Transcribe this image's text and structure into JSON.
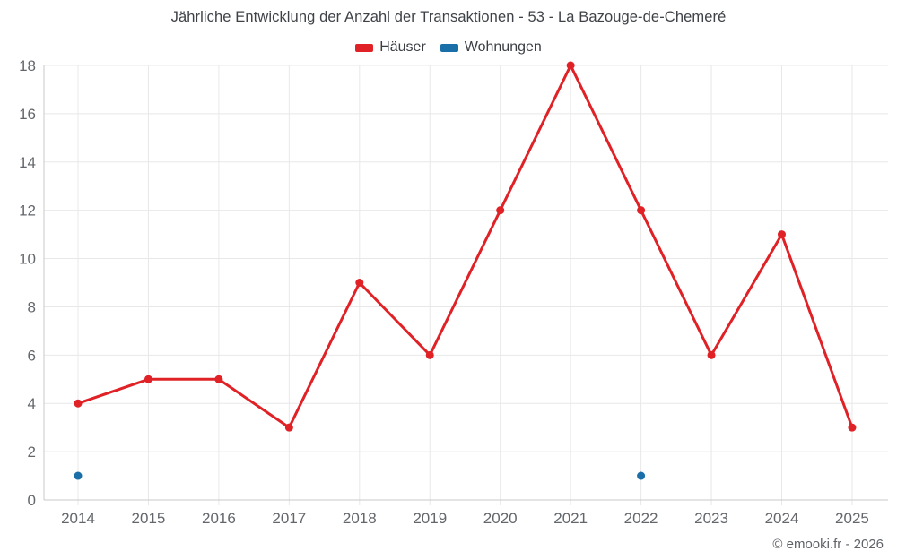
{
  "page": {
    "title": "Jährliche Entwicklung der Anzahl der Transaktionen - 53 - La Bazouge-de-Chemeré",
    "footer": "© emooki.fr - 2026"
  },
  "legend": {
    "items": [
      {
        "label": "Häuser",
        "color": "#e02227"
      },
      {
        "label": "Wohnungen",
        "color": "#1a6fa8"
      }
    ]
  },
  "chart_data": {
    "type": "line",
    "title": "Jährliche Entwicklung der Anzahl der Transaktionen - 53 - La Bazouge-de-Chemeré",
    "categories": [
      "2014",
      "2015",
      "2016",
      "2017",
      "2018",
      "2019",
      "2020",
      "2021",
      "2022",
      "2023",
      "2024",
      "2025"
    ],
    "series": [
      {
        "name": "Häuser",
        "type": "line",
        "color": "#e02227",
        "values": [
          4,
          5,
          5,
          3,
          9,
          6,
          12,
          18,
          12,
          6,
          11,
          3
        ]
      },
      {
        "name": "Wohnungen",
        "type": "scatter",
        "color": "#1a6fa8",
        "values": [
          1,
          null,
          null,
          null,
          null,
          null,
          null,
          null,
          1,
          null,
          null,
          null
        ]
      }
    ],
    "xlabel": "",
    "ylabel": "",
    "ylim": [
      0,
      18
    ],
    "ytick_step": 2,
    "grid": true,
    "legend_position": "top",
    "annotations": []
  }
}
